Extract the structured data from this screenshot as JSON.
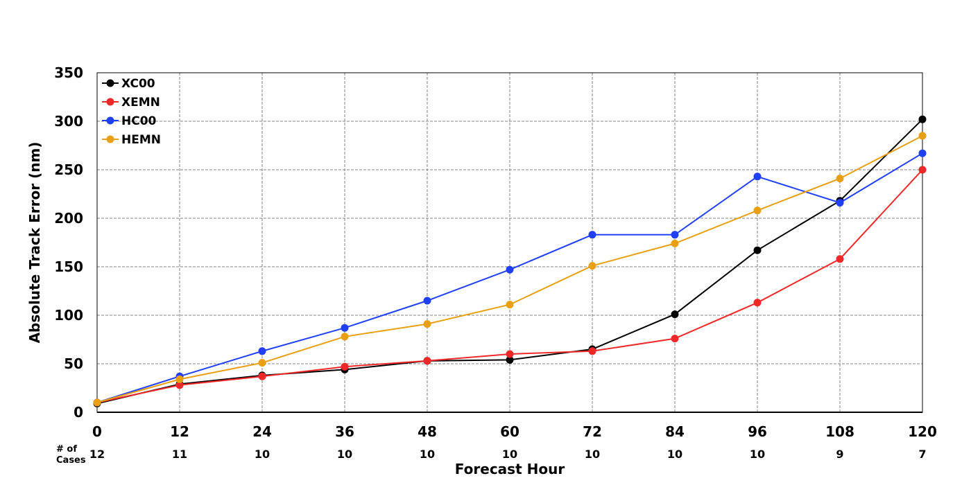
{
  "chart_data": {
    "type": "line",
    "title": "",
    "xlabel": "Forecast Hour",
    "ylabel": "Absolute Track Error (nm)",
    "x": [
      0,
      12,
      24,
      36,
      48,
      60,
      72,
      84,
      96,
      108,
      120
    ],
    "x_tick_labels": [
      "0",
      "12",
      "24",
      "36",
      "48",
      "60",
      "72",
      "84",
      "96",
      "108",
      "120"
    ],
    "xlim": [
      0,
      120
    ],
    "ylim": [
      0,
      350
    ],
    "y_ticks": [
      0,
      50,
      100,
      150,
      200,
      250,
      300,
      350
    ],
    "y_tick_labels": [
      "0",
      "50",
      "100",
      "150",
      "200",
      "250",
      "300",
      "350"
    ],
    "grid": true,
    "legend_position": "top-left",
    "cases_label_line1": "# of",
    "cases_label_line2": "Cases",
    "cases": [
      "12",
      "11",
      "10",
      "10",
      "10",
      "10",
      "10",
      "10",
      "10",
      "9",
      "7"
    ],
    "series": [
      {
        "name": "XC00",
        "color": "#000000",
        "values": [
          9,
          29,
          38,
          44,
          53,
          54,
          65,
          101,
          167,
          218,
          302
        ]
      },
      {
        "name": "XEMN",
        "color": "#f02828",
        "values": [
          10,
          28,
          37,
          47,
          53,
          60,
          63,
          76,
          113,
          158,
          250
        ]
      },
      {
        "name": "HC00",
        "color": "#2040f8",
        "values": [
          10,
          37,
          63,
          87,
          115,
          147,
          183,
          183,
          243,
          216,
          267
        ]
      },
      {
        "name": "HEMN",
        "color": "#e8a010",
        "values": [
          10,
          34,
          51,
          78,
          91,
          111,
          151,
          174,
          208,
          241,
          285
        ]
      }
    ]
  }
}
